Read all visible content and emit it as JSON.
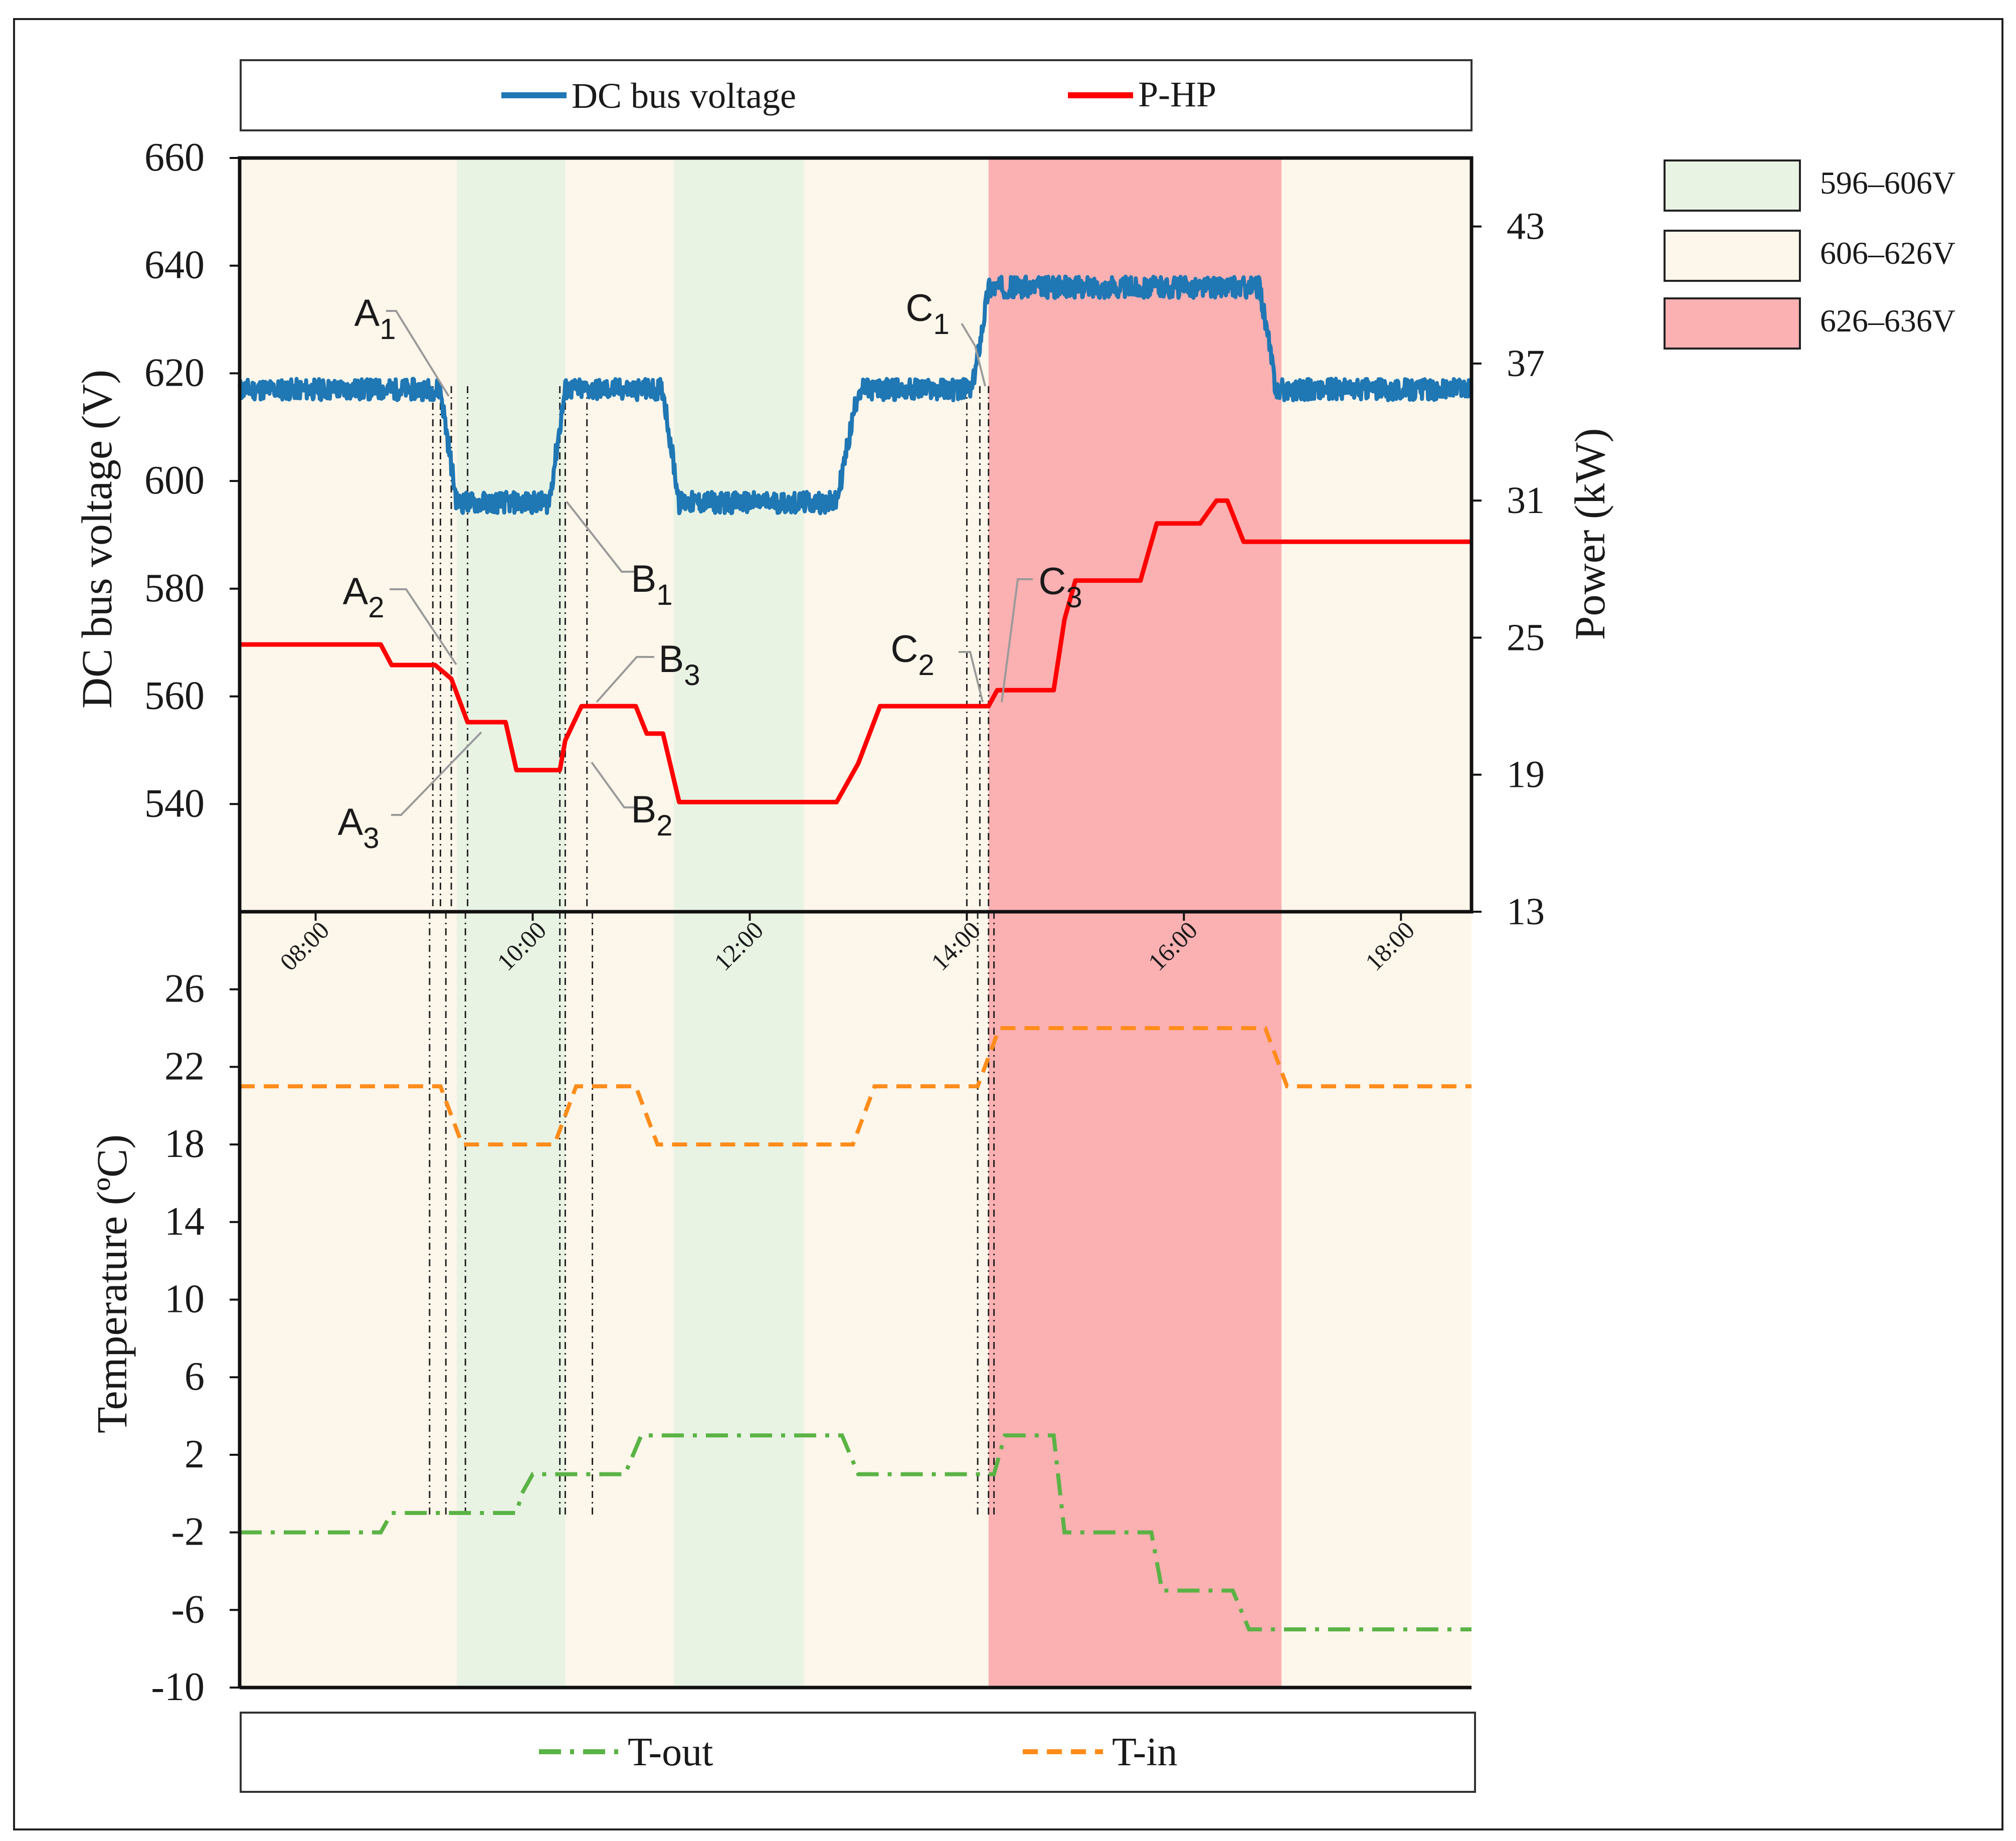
{
  "chart_data": {
    "type": "line",
    "x_range": [
      7.3,
      18.65
    ],
    "x_ticks": [
      "08:00",
      "10:00",
      "12:00",
      "14:00",
      "16:00",
      "18:00"
    ],
    "x_tick_values": [
      8,
      10,
      12,
      14,
      16,
      18
    ],
    "top_panel": {
      "left_axis": {
        "label": "DC bus voltage (V)",
        "range": [
          520,
          660
        ],
        "ticks": [
          "660",
          "640",
          "620",
          "600",
          "580",
          "560",
          "540"
        ],
        "tick_values": [
          660,
          640,
          620,
          600,
          580,
          560,
          540
        ]
      },
      "right_axis": {
        "label": "Power (kW)",
        "range": [
          13,
          46
        ],
        "ticks": [
          "43",
          "37",
          "31",
          "25",
          "19",
          "13"
        ],
        "tick_values": [
          43,
          37,
          31,
          25,
          19,
          13
        ]
      },
      "legend": [
        "DC bus voltage",
        "P-HP"
      ],
      "series": [
        {
          "name": "DC bus voltage",
          "axis": "left",
          "color": "#1f77b4",
          "points": [
            [
              7.3,
              617
            ],
            [
              9.15,
              617
            ],
            [
              9.3,
              596
            ],
            [
              10.15,
              596
            ],
            [
              10.3,
              617
            ],
            [
              11.2,
              617
            ],
            [
              11.35,
              596
            ],
            [
              12.8,
              596
            ],
            [
              13.0,
              617
            ],
            [
              14.05,
              617
            ],
            [
              14.2,
              636
            ],
            [
              16.7,
              636
            ],
            [
              16.85,
              617
            ],
            [
              18.65,
              617
            ]
          ]
        },
        {
          "name": "P-HP",
          "axis": "right",
          "color": "#ff0000",
          "points": [
            [
              7.3,
              24.7
            ],
            [
              8.6,
              24.7
            ],
            [
              8.7,
              23.8
            ],
            [
              9.1,
              23.8
            ],
            [
              9.25,
              23.2
            ],
            [
              9.4,
              21.3
            ],
            [
              9.75,
              21.3
            ],
            [
              9.85,
              19.2
            ],
            [
              10.25,
              19.2
            ],
            [
              10.3,
              20.5
            ],
            [
              10.45,
              22.0
            ],
            [
              10.95,
              22.0
            ],
            [
              11.05,
              20.8
            ],
            [
              11.2,
              20.8
            ],
            [
              11.35,
              17.8
            ],
            [
              12.8,
              17.8
            ],
            [
              13.0,
              19.5
            ],
            [
              13.2,
              22.0
            ],
            [
              14.0,
              22.0
            ],
            [
              14.2,
              22.0
            ],
            [
              14.28,
              22.7
            ],
            [
              14.8,
              22.7
            ],
            [
              14.9,
              25.8
            ],
            [
              15.0,
              27.5
            ],
            [
              15.6,
              27.5
            ],
            [
              15.75,
              30.0
            ],
            [
              16.15,
              30.0
            ],
            [
              16.3,
              31.0
            ],
            [
              16.4,
              31.0
            ],
            [
              16.55,
              29.2
            ],
            [
              18.65,
              29.2
            ]
          ]
        }
      ],
      "annotations": [
        {
          "base": "A",
          "sub": "1"
        },
        {
          "base": "B",
          "sub": "1"
        },
        {
          "base": "C",
          "sub": "1"
        },
        {
          "base": "A",
          "sub": "2"
        },
        {
          "base": "A",
          "sub": "3"
        },
        {
          "base": "B",
          "sub": "3"
        },
        {
          "base": "B",
          "sub": "2"
        },
        {
          "base": "C",
          "sub": "2"
        },
        {
          "base": "C",
          "sub": "3"
        }
      ]
    },
    "bottom_panel": {
      "axis": {
        "label": "Temperature (ºC)",
        "range": [
          -10,
          30
        ],
        "ticks": [
          "26",
          "22",
          "18",
          "14",
          "10",
          "6",
          "2",
          "-2",
          "-6",
          "-10"
        ],
        "tick_values": [
          26,
          22,
          18,
          14,
          10,
          6,
          2,
          -2,
          -6,
          -10
        ]
      },
      "legend": [
        "T-out",
        "T-in"
      ],
      "series": [
        {
          "name": "T-out",
          "color": "#5ab345",
          "points": [
            [
              7.3,
              -2
            ],
            [
              8.6,
              -2
            ],
            [
              8.7,
              -1
            ],
            [
              9.85,
              -1
            ],
            [
              9.9,
              0
            ],
            [
              10.0,
              1
            ],
            [
              10.85,
              1
            ],
            [
              11.0,
              3
            ],
            [
              12.85,
              3
            ],
            [
              13.0,
              1
            ],
            [
              14.25,
              1
            ],
            [
              14.35,
              3
            ],
            [
              14.8,
              3
            ],
            [
              14.9,
              -2
            ],
            [
              15.7,
              -2
            ],
            [
              15.8,
              -5
            ],
            [
              16.45,
              -5
            ],
            [
              16.6,
              -7
            ],
            [
              18.65,
              -7
            ]
          ]
        },
        {
          "name": "T-in",
          "color": "#ff8c1a",
          "points": [
            [
              7.3,
              21
            ],
            [
              9.15,
              21
            ],
            [
              9.35,
              18
            ],
            [
              10.2,
              18
            ],
            [
              10.4,
              21
            ],
            [
              10.95,
              21
            ],
            [
              11.15,
              18
            ],
            [
              12.95,
              18
            ],
            [
              13.15,
              21
            ],
            [
              14.1,
              21
            ],
            [
              14.3,
              24
            ],
            [
              16.75,
              24
            ],
            [
              16.95,
              21
            ],
            [
              18.65,
              21
            ]
          ]
        }
      ]
    },
    "voltage_bands": {
      "legend": [
        {
          "label": "596–606V",
          "color": "#e9f3e4"
        },
        {
          "label": "606–626V",
          "color": "#fdf6ea"
        },
        {
          "label": "626–636V",
          "color": "#fbb0b2"
        }
      ],
      "regions": [
        {
          "start": 7.3,
          "end": 9.3,
          "band": 1
        },
        {
          "start": 9.3,
          "end": 10.3,
          "band": 0
        },
        {
          "start": 10.3,
          "end": 11.3,
          "band": 1
        },
        {
          "start": 11.3,
          "end": 12.5,
          "band": 0
        },
        {
          "start": 12.5,
          "end": 14.2,
          "band": 1
        },
        {
          "start": 14.2,
          "end": 16.9,
          "band": 2
        },
        {
          "start": 16.9,
          "end": 18.65,
          "band": 1
        }
      ]
    },
    "guide_lines": {
      "top_panel_times": [
        9.08,
        9.15,
        9.25,
        9.4,
        10.25,
        10.3,
        10.5,
        14.0,
        14.12,
        14.2
      ],
      "bottom_panel_times": [
        9.05,
        9.2,
        9.38,
        10.25,
        10.3,
        10.55,
        14.1,
        14.2,
        14.25
      ]
    }
  }
}
